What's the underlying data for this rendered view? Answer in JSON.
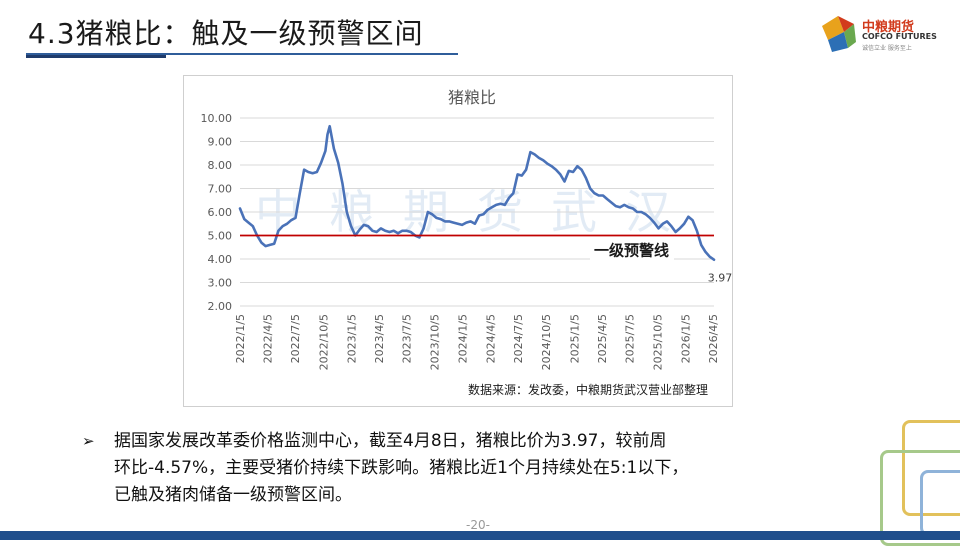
{
  "header": {
    "title": "4.3猪粮比：触及一级预警区间",
    "logo": {
      "name_cn": "中粮期货",
      "name_en": "COFCO FUTURES",
      "tagline": "诚信立业 服务至上"
    }
  },
  "chart_data": {
    "type": "line",
    "title": "猪粮比",
    "ylim": [
      2.0,
      10.0
    ],
    "yticks": [
      "2.00",
      "3.00",
      "4.00",
      "5.00",
      "6.00",
      "7.00",
      "8.00",
      "9.00",
      "10.00"
    ],
    "xlim": [
      "2022/1/5",
      "2026/4/8"
    ],
    "xticks": [
      "2022/1/5",
      "2022/4/5",
      "2022/7/5",
      "2022/10/5",
      "2023/1/5",
      "2023/4/5",
      "2023/7/5",
      "2023/10/5",
      "2024/1/5",
      "2024/4/5",
      "2024/7/5",
      "2024/10/5",
      "2025/1/5",
      "2025/4/5",
      "2025/7/5",
      "2025/10/5",
      "2026/1/5",
      "2026/4/5"
    ],
    "grid": true,
    "series": [
      {
        "color": "#4a72b8",
        "x": [
          "2022/1/5",
          "2022/1/19",
          "2022/2/2",
          "2022/2/16",
          "2022/3/2",
          "2022/3/16",
          "2022/3/30",
          "2022/4/13",
          "2022/4/27",
          "2022/5/11",
          "2022/5/25",
          "2022/6/8",
          "2022/6/22",
          "2022/7/6",
          "2022/7/20",
          "2022/8/3",
          "2022/8/17",
          "2022/8/31",
          "2022/9/14",
          "2022/9/28",
          "2022/10/12",
          "2022/10/19",
          "2022/10/26",
          "2022/11/9",
          "2022/11/23",
          "2022/12/7",
          "2022/12/21",
          "2023/1/4",
          "2023/1/18",
          "2023/2/1",
          "2023/2/15",
          "2023/3/1",
          "2023/3/15",
          "2023/3/29",
          "2023/4/12",
          "2023/4/26",
          "2023/5/10",
          "2023/5/24",
          "2023/6/7",
          "2023/6/21",
          "2023/7/5",
          "2023/7/19",
          "2023/8/2",
          "2023/8/16",
          "2023/8/30",
          "2023/9/13",
          "2023/9/27",
          "2023/10/11",
          "2023/10/25",
          "2023/11/8",
          "2023/11/22",
          "2023/12/6",
          "2023/12/20",
          "2024/1/3",
          "2024/1/17",
          "2024/1/31",
          "2024/2/14",
          "2024/2/28",
          "2024/3/13",
          "2024/3/27",
          "2024/4/10",
          "2024/4/24",
          "2024/5/8",
          "2024/5/22",
          "2024/6/5",
          "2024/6/19",
          "2024/7/3",
          "2024/7/17",
          "2024/7/31",
          "2024/8/14",
          "2024/8/28",
          "2024/9/11",
          "2024/9/25",
          "2024/10/9",
          "2024/10/23",
          "2024/11/6",
          "2024/11/20",
          "2024/12/4",
          "2024/12/18",
          "2025/1/1",
          "2025/1/15",
          "2025/1/29",
          "2025/2/12",
          "2025/2/26",
          "2025/3/12",
          "2025/3/26",
          "2025/4/9",
          "2025/4/23",
          "2025/5/7",
          "2025/5/21",
          "2025/6/4",
          "2025/6/18",
          "2025/7/2",
          "2025/7/16",
          "2025/7/30",
          "2025/8/13",
          "2025/8/27",
          "2025/9/10",
          "2025/9/24",
          "2025/10/8",
          "2025/10/22",
          "2025/11/5",
          "2025/11/19",
          "2025/12/3",
          "2025/12/17",
          "2025/12/31",
          "2026/1/14",
          "2026/1/28",
          "2026/2/11",
          "2026/2/25",
          "2026/3/11",
          "2026/3/25",
          "2026/4/8"
        ],
        "y": [
          6.15,
          5.7,
          5.55,
          5.4,
          5.0,
          4.7,
          4.55,
          4.6,
          4.65,
          5.2,
          5.4,
          5.5,
          5.65,
          5.75,
          6.8,
          7.8,
          7.7,
          7.65,
          7.7,
          8.1,
          8.6,
          9.3,
          9.65,
          8.7,
          8.1,
          7.2,
          6.0,
          5.4,
          5.0,
          5.25,
          5.45,
          5.4,
          5.2,
          5.15,
          5.3,
          5.2,
          5.15,
          5.2,
          5.1,
          5.2,
          5.2,
          5.15,
          5.0,
          4.92,
          5.3,
          6.0,
          5.9,
          5.75,
          5.7,
          5.6,
          5.6,
          5.55,
          5.5,
          5.45,
          5.55,
          5.6,
          5.5,
          5.85,
          5.9,
          6.1,
          6.2,
          6.3,
          6.35,
          6.3,
          6.6,
          6.8,
          7.6,
          7.55,
          7.8,
          8.55,
          8.45,
          8.3,
          8.2,
          8.05,
          7.95,
          7.8,
          7.6,
          7.3,
          7.75,
          7.7,
          7.95,
          7.8,
          7.45,
          7.0,
          6.8,
          6.7,
          6.7,
          6.55,
          6.4,
          6.25,
          6.2,
          6.3,
          6.2,
          6.15,
          6.0,
          6.0,
          5.9,
          5.75,
          5.55,
          5.3,
          5.5,
          5.6,
          5.4,
          5.15,
          5.3,
          5.5,
          5.8,
          5.65,
          5.2,
          4.6,
          4.3,
          4.1,
          3.97
        ]
      }
    ],
    "hlines": [
      {
        "y": 5.0,
        "color": "#c00000",
        "label": "一级预警线"
      }
    ],
    "annotations": [
      {
        "x": "2026/4/8",
        "y": 3.97,
        "text": "3.97"
      }
    ],
    "source": "数据来源：发改委，中粮期货武汉营业部整理",
    "watermark": "中粮期货武汉"
  },
  "body": {
    "bullet_symbol": "➢",
    "lines": [
      "据国家发展改革委价格监测中心，截至4月8日，猪粮比价为3.97，较前周",
      "环比-4.57%，主要受猪价持续下跌影响。猪粮比近1个月持续处在5:1以下，",
      "已触及猪肉储备一级预警区间。"
    ]
  },
  "footer": {
    "page_number": "-20-"
  }
}
